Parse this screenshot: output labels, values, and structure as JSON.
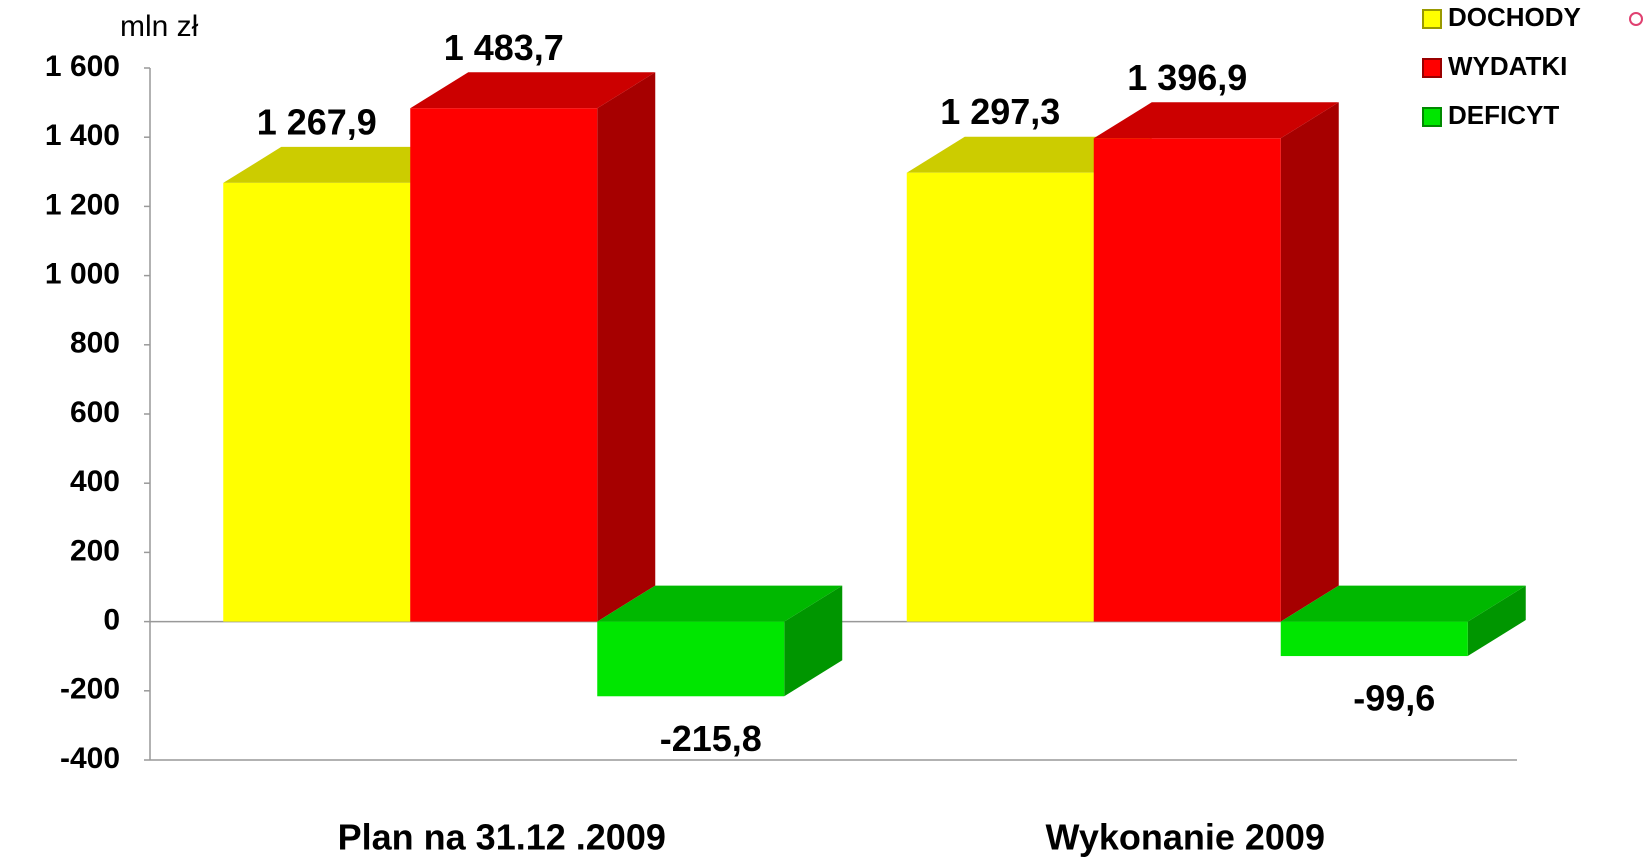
{
  "chart_data": {
    "type": "bar",
    "y_axis_label": "mln zł",
    "categories": [
      "Plan na 31.12 .2009",
      "Wykonanie 2009"
    ],
    "series": [
      {
        "name": "DOCHODY",
        "color": "#ffff00",
        "values": [
          1267.9,
          1297.3
        ],
        "value_labels": [
          "1 267,9",
          "1 297,3"
        ]
      },
      {
        "name": "WYDATKI",
        "color": "#ff0000",
        "values": [
          1483.7,
          1396.9
        ],
        "value_labels": [
          "1 483,7",
          "1 396,9"
        ]
      },
      {
        "name": "DEFICYT",
        "color": "#00e600",
        "values": [
          -215.8,
          -99.6
        ],
        "value_labels": [
          "-215,8",
          "-99,6"
        ]
      }
    ],
    "ylim": [
      -400,
      1600
    ],
    "yticks": [
      -400,
      -200,
      0,
      200,
      400,
      600,
      800,
      {
        "value": 1000,
        "label": "1 000"
      },
      {
        "value": 1200,
        "label": "1 200"
      },
      {
        "value": 1400,
        "label": "1 400"
      },
      {
        "value": 1600,
        "label": "1 600"
      }
    ],
    "legend": "top-right"
  }
}
